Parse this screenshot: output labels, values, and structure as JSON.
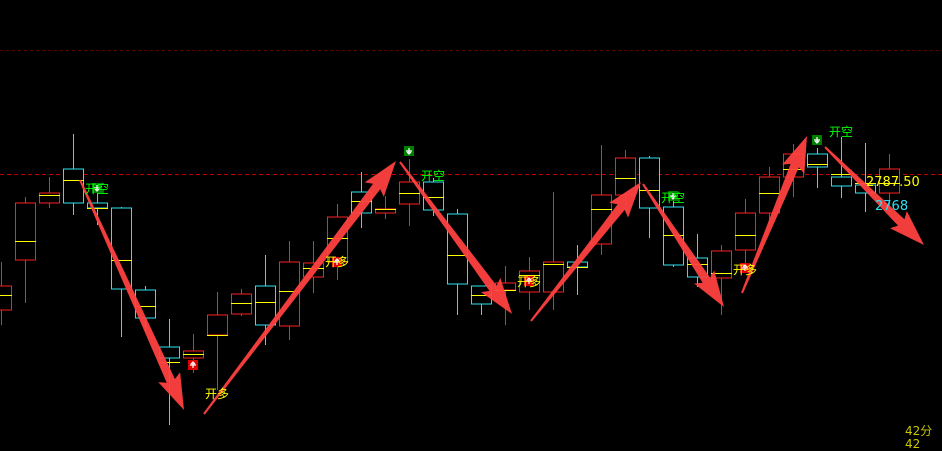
{
  "chart_data": {
    "type": "candlestick",
    "colors": {
      "up": "#ff2020",
      "down": "#30e0f0",
      "mid_line": "#ffff00",
      "short_signal": "#00ff00",
      "long_signal": "#ffff00",
      "arrow": "#ff4040",
      "reference_line": "#c00000"
    },
    "reference_price": 2787.5,
    "reference_price_label": "2787.50",
    "secondary_price_label": "2768",
    "time_label": "42分42",
    "candles": [
      {
        "o": 2705.9,
        "h": 2734.7,
        "l": 2696.9,
        "c": 2720.3,
        "mid": 2714.9
      },
      {
        "o": 2735.9,
        "h": 2773.7,
        "l": 2710.1,
        "c": 2770.1,
        "mid": 2747.3
      },
      {
        "o": 2770.1,
        "h": 2785.7,
        "l": 2767.1,
        "c": 2776.1,
        "mid": 2774.9
      },
      {
        "o": 2790.5,
        "h": 2811.5,
        "l": 2762.9,
        "c": 2770.1,
        "mid": 2783.9
      },
      {
        "o": 2770.1,
        "h": 2780.9,
        "l": 2756.9,
        "c": 2767.1,
        "mid": 2767.1
      },
      {
        "o": 2767.1,
        "h": 2767.7,
        "l": 2689.7,
        "c": 2718.5,
        "mid": 2735.9
      },
      {
        "o": 2717.9,
        "h": 2720.3,
        "l": 2693.9,
        "c": 2701.1,
        "mid": 2708.3
      },
      {
        "o": 2683.7,
        "h": 2700.5,
        "l": 2636.9,
        "c": 2677.1,
        "mid": 2674.7
      },
      {
        "o": 2677.1,
        "h": 2691.5,
        "l": 2668.1,
        "c": 2681.3,
        "mid": 2679.5
      },
      {
        "o": 2690.9,
        "h": 2716.7,
        "l": 2657.9,
        "c": 2702.9,
        "mid": 2690.9
      },
      {
        "o": 2703.5,
        "h": 2718.5,
        "l": 2702.3,
        "c": 2715.5,
        "mid": 2710.1
      },
      {
        "o": 2720.3,
        "h": 2738.9,
        "l": 2684.9,
        "c": 2696.9,
        "mid": 2710.7
      },
      {
        "o": 2696.3,
        "h": 2747.3,
        "l": 2687.9,
        "c": 2734.7,
        "mid": 2717.3
      },
      {
        "o": 2725.7,
        "h": 2747.3,
        "l": 2716.1,
        "c": 2734.1,
        "mid": 2731.1
      },
      {
        "o": 2734.7,
        "h": 2769.5,
        "l": 2723.9,
        "c": 2761.7,
        "mid": 2749.1
      },
      {
        "o": 2776.7,
        "h": 2788.7,
        "l": 2755.1,
        "c": 2764.1,
        "mid": 2771.3
      },
      {
        "o": 2764.1,
        "h": 2774.3,
        "l": 2760.5,
        "c": 2766.5,
        "mid": 2766.5
      },
      {
        "o": 2769.5,
        "h": 2796.5,
        "l": 2756.3,
        "c": 2782.7,
        "mid": 2776.1
      },
      {
        "o": 2782.7,
        "h": 2785.1,
        "l": 2762.3,
        "c": 2765.9,
        "mid": 2773.7
      },
      {
        "o": 2763.5,
        "h": 2766.5,
        "l": 2702.9,
        "c": 2721.5,
        "mid": 2738.9
      },
      {
        "o": 2720.3,
        "h": 2720.3,
        "l": 2702.9,
        "c": 2709.5,
        "mid": 2714.9
      },
      {
        "o": 2717.9,
        "h": 2732.3,
        "l": 2696.9,
        "c": 2722.1,
        "mid": 2717.9
      },
      {
        "o": 2716.7,
        "h": 2737.7,
        "l": 2705.9,
        "c": 2729.3,
        "mid": 2726.9
      },
      {
        "o": 2716.7,
        "h": 2776.7,
        "l": 2705.9,
        "c": 2734.7,
        "mid": 2733.5
      },
      {
        "o": 2734.7,
        "h": 2744.9,
        "l": 2714.9,
        "c": 2731.7,
        "mid": 2731.7
      },
      {
        "o": 2745.5,
        "h": 2804.9,
        "l": 2738.9,
        "c": 2774.9,
        "mid": 2766.5
      },
      {
        "o": 2774.9,
        "h": 2801.9,
        "l": 2765.9,
        "c": 2797.1,
        "mid": 2785.1
      },
      {
        "o": 2797.1,
        "h": 2798.3,
        "l": 2749.1,
        "c": 2767.1,
        "mid": 2777.9
      },
      {
        "o": 2767.7,
        "h": 2774.9,
        "l": 2731.7,
        "c": 2732.9,
        "mid": 2750.9
      },
      {
        "o": 2737.1,
        "h": 2751.5,
        "l": 2719.7,
        "c": 2725.7,
        "mid": 2733.5
      },
      {
        "o": 2725.1,
        "h": 2744.9,
        "l": 2702.9,
        "c": 2741.3,
        "mid": 2728.1
      },
      {
        "o": 2741.9,
        "h": 2772.5,
        "l": 2731.1,
        "c": 2764.1,
        "mid": 2750.9
      },
      {
        "o": 2764.1,
        "h": 2791.7,
        "l": 2756.9,
        "c": 2785.7,
        "mid": 2776.1
      },
      {
        "o": 2785.7,
        "h": 2805.5,
        "l": 2773.7,
        "c": 2799.5,
        "mid": 2790.5
      },
      {
        "o": 2799.5,
        "h": 2803.1,
        "l": 2779.1,
        "c": 2791.7,
        "mid": 2793.5
      },
      {
        "o": 2785.7,
        "h": 2809.7,
        "l": 2773.1,
        "c": 2780.3,
        "mid": 2787.5
      },
      {
        "o": 2780.9,
        "h": 2806.1,
        "l": 2764.7,
        "c": 2776.1,
        "mid": 2782.1
      },
      {
        "o": 2776.1,
        "h": 2799.5,
        "l": 2764.7,
        "c": 2790.5,
        "mid": 2782.1
      }
    ],
    "signals": [
      {
        "candle": 4,
        "type": "short",
        "label": "开空",
        "icon": "down-arrow-icon"
      },
      {
        "candle": 8,
        "type": "long",
        "label": "开多",
        "icon": "up-arrow-icon"
      },
      {
        "candle": 14,
        "type": "long",
        "label": "开多",
        "icon": "up-arrow-icon"
      },
      {
        "candle": 17,
        "type": "short",
        "label": "开空",
        "icon": "down-arrow-icon"
      },
      {
        "candle": 22,
        "type": "long",
        "label": "开多",
        "icon": "up-arrow-icon"
      },
      {
        "candle": 28,
        "type": "short",
        "label": "开空",
        "icon": "down-arrow-icon"
      },
      {
        "candle": 31,
        "type": "long",
        "label": "开多",
        "icon": "up-arrow-icon"
      },
      {
        "candle": 34,
        "type": "short",
        "label": "开空",
        "icon": "down-arrow-icon"
      }
    ]
  }
}
